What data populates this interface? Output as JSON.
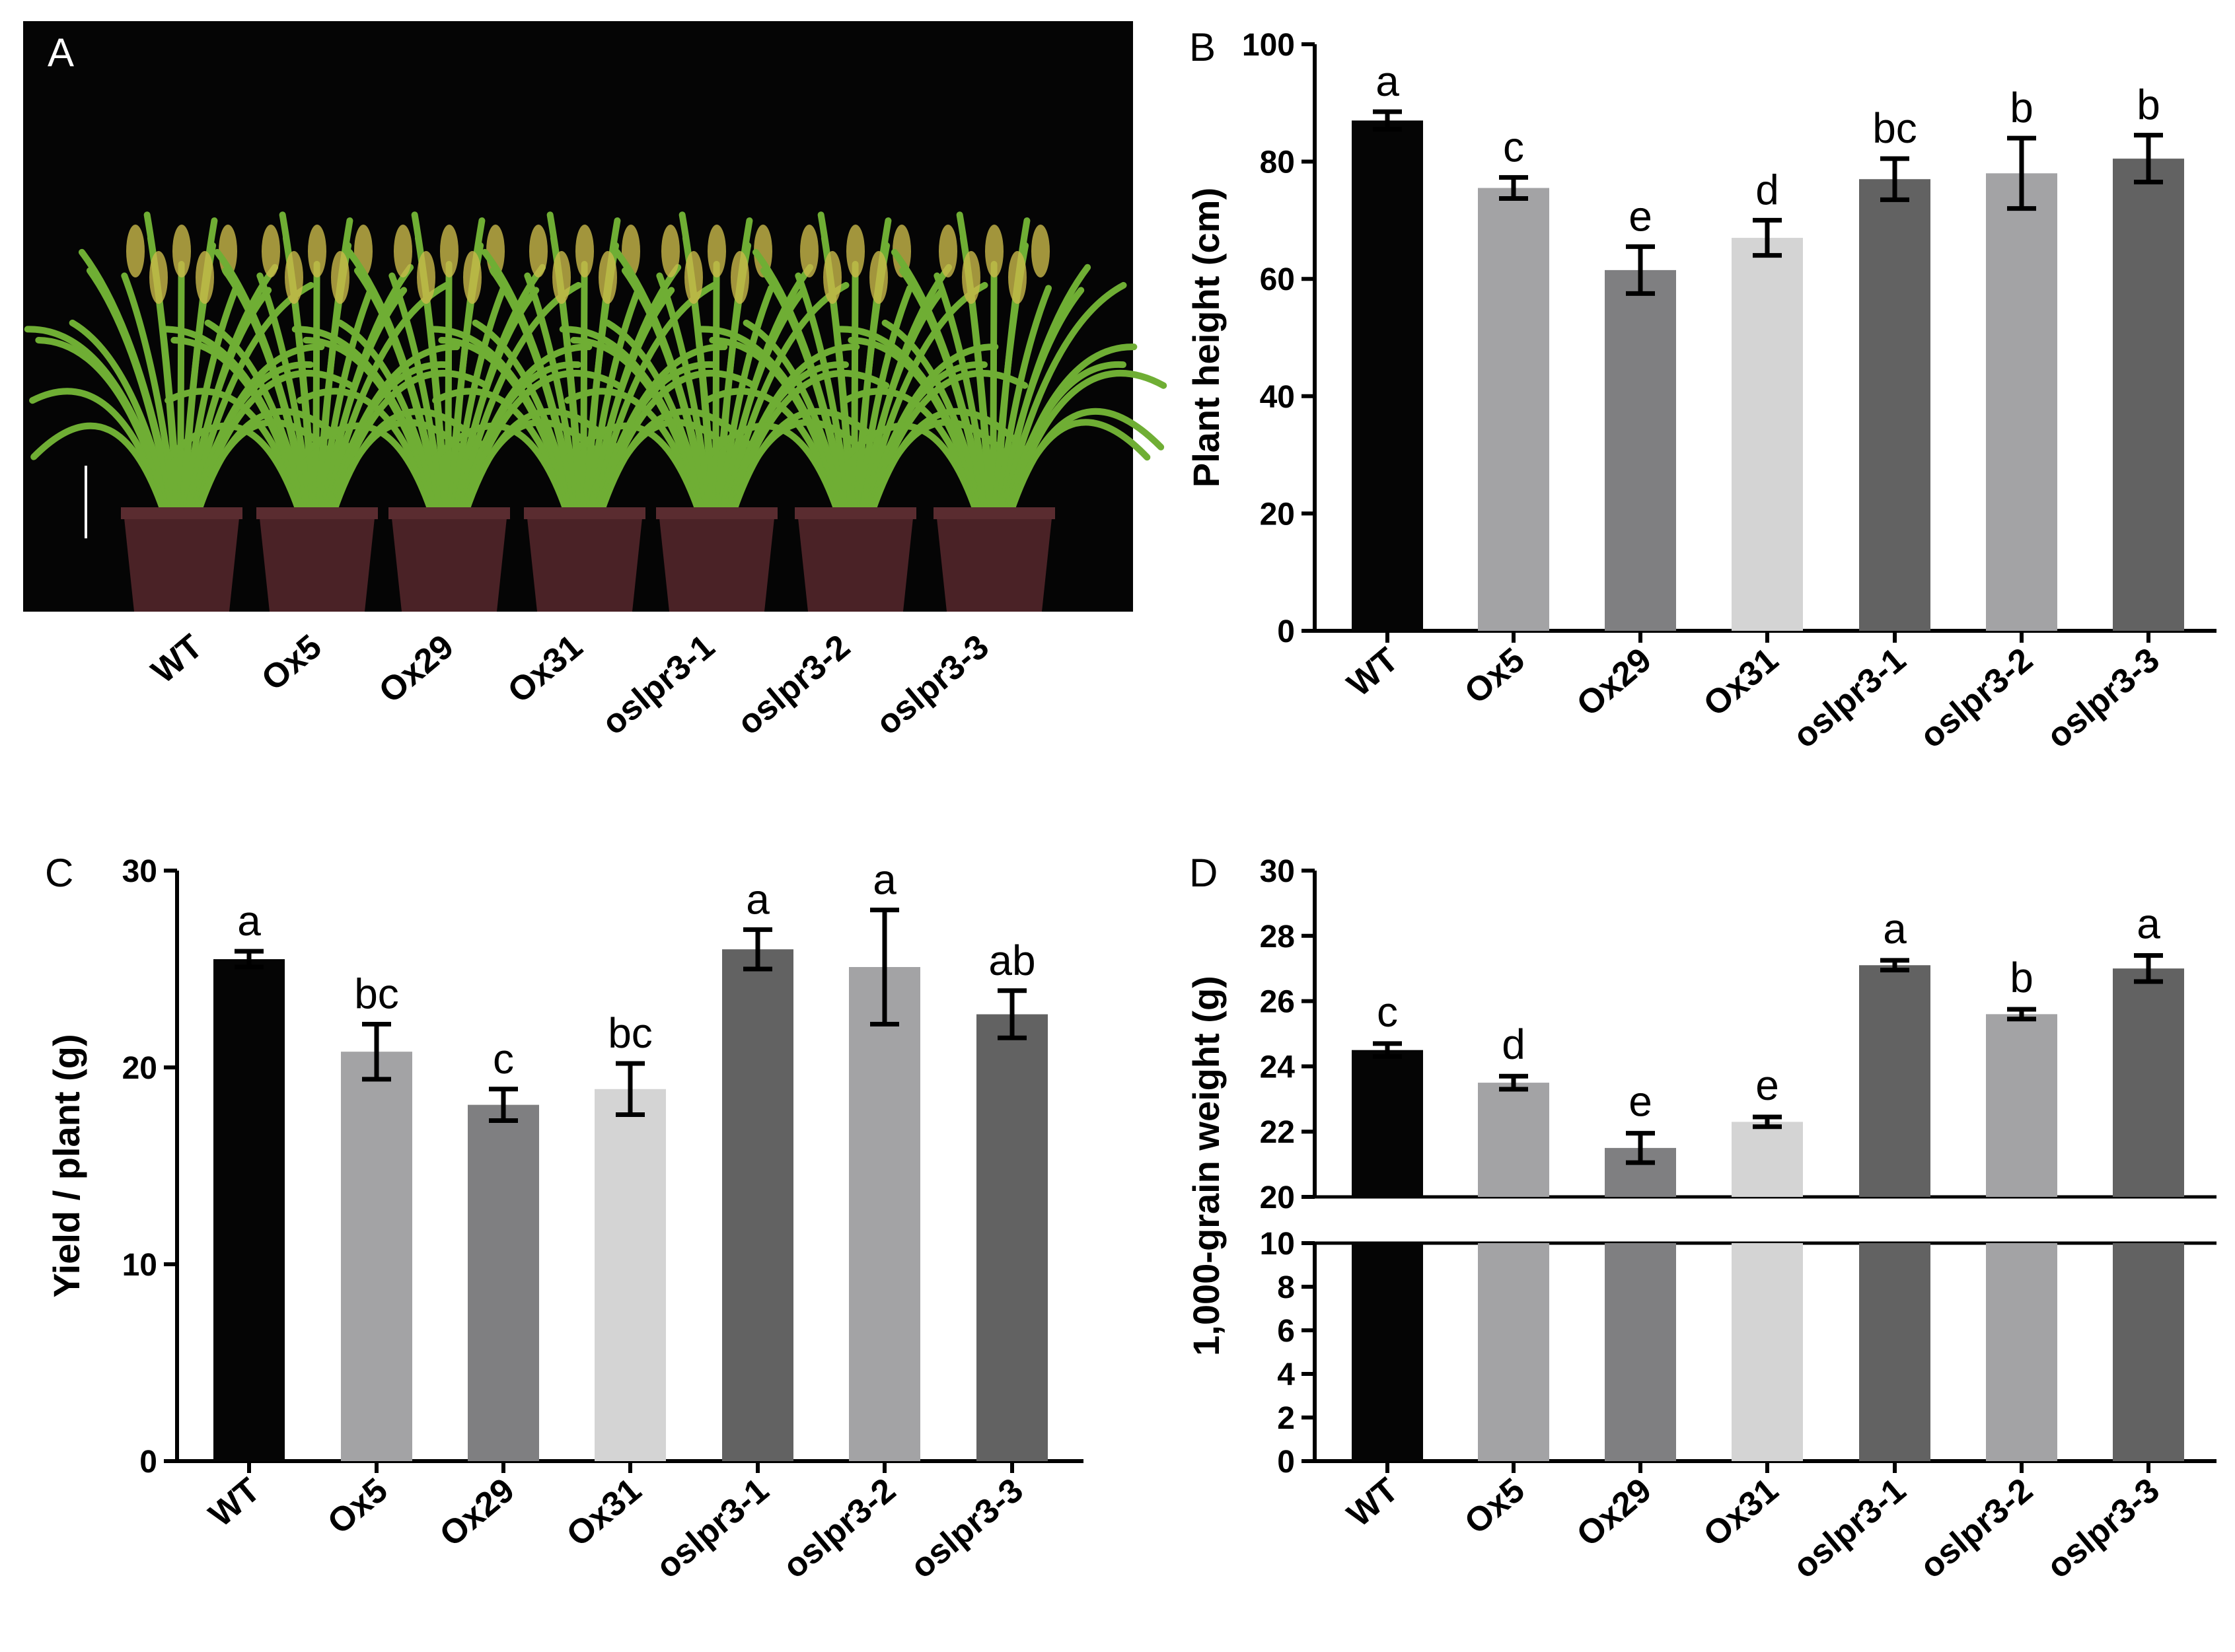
{
  "panel_a": {
    "letter": "A",
    "categories": [
      "WT",
      "Ox5",
      "Ox29",
      "Ox31",
      "oslpr3-1",
      "oslpr3-2",
      "oslpr3-3"
    ],
    "colors": {
      "background": "#050505",
      "pot": "#4a2226",
      "leaf": "#6fae34",
      "panicle": "#c9b94a",
      "scale_bar": "#ffffff"
    }
  },
  "chart_data": [
    {
      "panel": "B",
      "type": "bar",
      "categories": [
        "WT",
        "Ox5",
        "Ox29",
        "Ox31",
        "oslpr3-1",
        "oslpr3-2",
        "oslpr3-3"
      ],
      "values": [
        87,
        75.5,
        61.5,
        67,
        77,
        78,
        80.5
      ],
      "errors": [
        1.5,
        1.8,
        4,
        3,
        3.5,
        6,
        4
      ],
      "significance": [
        "a",
        "c",
        "e",
        "d",
        "bc",
        "b",
        "b"
      ],
      "colors": [
        "#050505",
        "#a3a3a5",
        "#7f7f81",
        "#d4d4d4",
        "#626262",
        "#a3a3a5",
        "#626262"
      ],
      "ylabel": "Plant height (cm)",
      "ylim": [
        0,
        100
      ],
      "yticks": [
        0,
        20,
        40,
        60,
        80,
        100
      ]
    },
    {
      "panel": "C",
      "type": "bar",
      "categories": [
        "WT",
        "Ox5",
        "Ox29",
        "Ox31",
        "oslpr3-1",
        "oslpr3-2",
        "oslpr3-3"
      ],
      "values": [
        25.5,
        20.8,
        18.1,
        18.9,
        26,
        25.1,
        22.7
      ],
      "errors": [
        0.4,
        1.4,
        0.8,
        1.3,
        1.0,
        2.9,
        1.2
      ],
      "significance": [
        "a",
        "bc",
        "c",
        "bc",
        "a",
        "a",
        "ab"
      ],
      "colors": [
        "#050505",
        "#a3a3a5",
        "#7f7f81",
        "#d4d4d4",
        "#626262",
        "#a3a3a5",
        "#626262"
      ],
      "ylabel": "Yield / plant (g)",
      "ylim": [
        0,
        30
      ],
      "yticks": [
        0,
        10,
        20,
        30
      ]
    },
    {
      "panel": "D",
      "type": "bar",
      "axis_break": true,
      "categories": [
        "WT",
        "Ox5",
        "Ox29",
        "Ox31",
        "oslpr3-1",
        "oslpr3-2",
        "oslpr3-3"
      ],
      "values": [
        24.5,
        23.5,
        21.5,
        22.3,
        27.1,
        25.6,
        27.0
      ],
      "errors": [
        0.2,
        0.2,
        0.45,
        0.15,
        0.15,
        0.15,
        0.4
      ],
      "significance": [
        "c",
        "d",
        "e",
        "e",
        "a",
        "b",
        "a"
      ],
      "colors": [
        "#050505",
        "#a3a3a5",
        "#7f7f81",
        "#d4d4d4",
        "#626262",
        "#a3a3a5",
        "#626262"
      ],
      "ylabel": "1,000-grain weight (g)",
      "lower_range": [
        0,
        10
      ],
      "upper_range": [
        20,
        30
      ],
      "yticks_lower": [
        0,
        2,
        4,
        6,
        8,
        10
      ],
      "yticks_upper": [
        20,
        22,
        24,
        26,
        28,
        30
      ]
    }
  ]
}
